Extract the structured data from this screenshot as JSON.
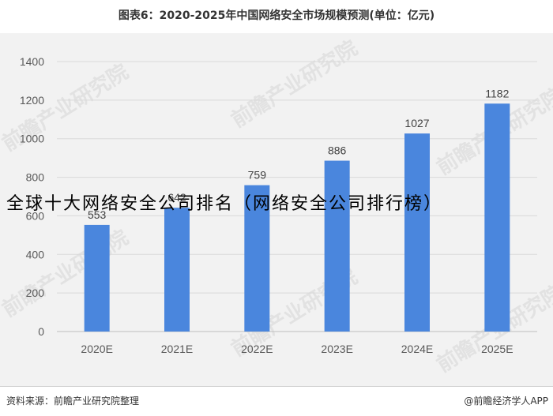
{
  "title": "图表6：2020-2025年中国网络安全市场规模预测(单位：亿元)",
  "overlay_text": "全球十大网络安全公司排名（网络安全公司排行榜）",
  "watermark": "前瞻产业研究院",
  "footer": {
    "source": "资料来源：前瞻产业研究院整理",
    "brand": "@前瞻经济学人APP"
  },
  "colors": {
    "bar": "#4a86dd",
    "panel": "#f2f2f2",
    "grid": "#d9d9d9"
  },
  "chart_data": {
    "type": "bar",
    "categories": [
      "2020E",
      "2021E",
      "2022E",
      "2023E",
      "2024E",
      "2025E"
    ],
    "values": [
      553,
      642,
      759,
      886,
      1027,
      1182
    ],
    "data_labels": [
      "553",
      "642",
      "759",
      "886",
      "1027",
      "1182"
    ],
    "yticks": [
      0,
      200,
      400,
      600,
      800,
      1000,
      1200,
      1400
    ],
    "ylim": [
      0,
      1400
    ],
    "grid": true,
    "legend": "none",
    "title": "图表6：2020-2025年中国网络安全市场规模预测(单位：亿元)",
    "xlabel": "",
    "ylabel": ""
  }
}
